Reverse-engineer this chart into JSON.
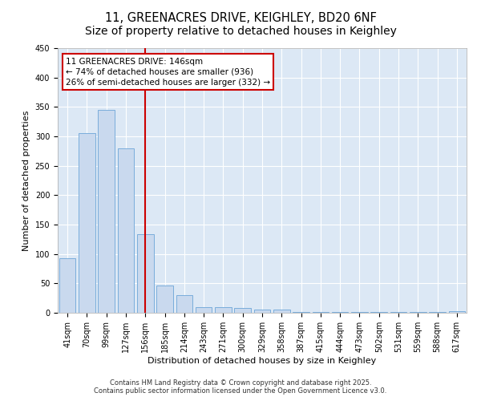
{
  "title": "11, GREENACRES DRIVE, KEIGHLEY, BD20 6NF",
  "subtitle": "Size of property relative to detached houses in Keighley",
  "xlabel": "Distribution of detached houses by size in Keighley",
  "ylabel": "Number of detached properties",
  "categories": [
    "41sqm",
    "70sqm",
    "99sqm",
    "127sqm",
    "156sqm",
    "185sqm",
    "214sqm",
    "243sqm",
    "271sqm",
    "300sqm",
    "329sqm",
    "358sqm",
    "387sqm",
    "415sqm",
    "444sqm",
    "473sqm",
    "502sqm",
    "531sqm",
    "559sqm",
    "588sqm",
    "617sqm"
  ],
  "values": [
    93,
    305,
    345,
    280,
    133,
    47,
    30,
    10,
    10,
    8,
    5,
    5,
    2,
    2,
    2,
    1,
    1,
    1,
    1,
    1,
    3
  ],
  "bar_color": "#c9d9ee",
  "bar_edge_color": "#7aaddb",
  "red_line_index": 4,
  "annotation_line_color": "#cc0000",
  "annotation_text_line1": "11 GREENACRES DRIVE: 146sqm",
  "annotation_text_line2": "← 74% of detached houses are smaller (936)",
  "annotation_text_line3": "26% of semi-detached houses are larger (332) →",
  "annotation_box_color": "#cc0000",
  "ylim": [
    0,
    450
  ],
  "yticks": [
    0,
    50,
    100,
    150,
    200,
    250,
    300,
    350,
    400,
    450
  ],
  "footer1": "Contains HM Land Registry data © Crown copyright and database right 2025.",
  "footer2": "Contains public sector information licensed under the Open Government Licence v3.0.",
  "fig_background_color": "#ffffff",
  "plot_background_color": "#dce8f5",
  "grid_color": "#ffffff",
  "title_fontsize": 10.5,
  "axis_label_fontsize": 8,
  "tick_fontsize": 7,
  "annotation_fontsize": 7.5,
  "footer_fontsize": 6
}
